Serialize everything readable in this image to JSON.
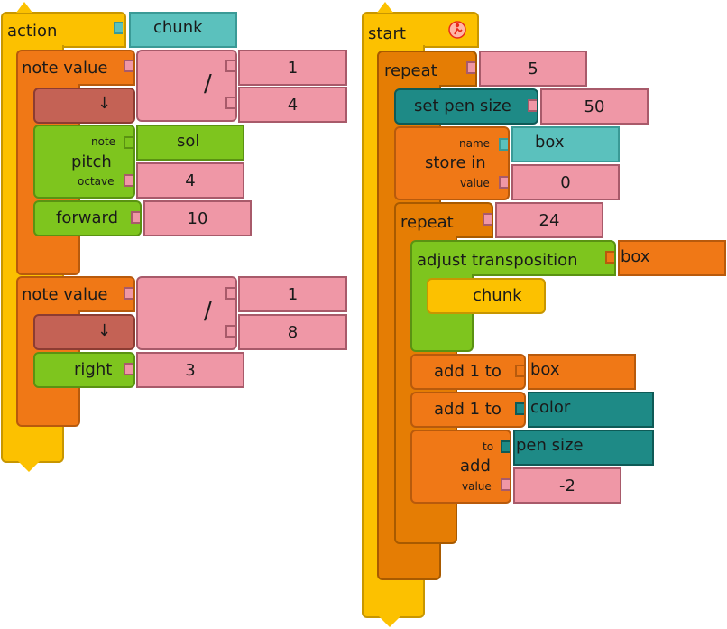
{
  "action_stack": {
    "action_label": "action",
    "action_name": "chunk",
    "note1": {
      "label": "note value",
      "divide": "/",
      "numerator": "1",
      "denominator": "4",
      "flat_arrow": "↓",
      "pitch_label": "pitch",
      "pitch_note_label": "note",
      "pitch_note_value": "sol",
      "pitch_octave_label": "octave",
      "pitch_octave_value": "4",
      "forward_label": "forward",
      "forward_value": "10"
    },
    "note2": {
      "label": "note value",
      "divide": "/",
      "numerator": "1",
      "denominator": "8",
      "flat_arrow": "↓",
      "right_label": "right",
      "right_value": "3"
    }
  },
  "start_stack": {
    "start_label": "start",
    "start_icon": "runner-icon",
    "repeat_label": "repeat",
    "repeat_value": "5",
    "set_pen_size_label": "set pen size",
    "set_pen_size_value": "50",
    "store_in": {
      "label": "store in",
      "name_label": "name",
      "name_value": "box",
      "value_label": "value",
      "value_value": "0"
    },
    "repeat2_label": "repeat",
    "repeat2_value": "24",
    "adjust_label": "adjust transposition",
    "adjust_value": "box",
    "chunk_label": "chunk",
    "add1_box_label": "add 1 to",
    "add1_box_value": "box",
    "add1_color_label": "add 1 to",
    "add1_color_value": "color",
    "add": {
      "label": "add",
      "to_label": "to",
      "to_value": "pen size",
      "value_label": "value",
      "value_value": "-2"
    }
  },
  "colors": {
    "action_yellow": "#fcc100",
    "note_orange": "#f07816",
    "flat_red": "#c46255",
    "green": "#7ec51e",
    "teal": "#5bc1bd",
    "dark_teal": "#1e8a86",
    "pink": "#ef97a6",
    "repeat_orange": "#e57d04"
  }
}
